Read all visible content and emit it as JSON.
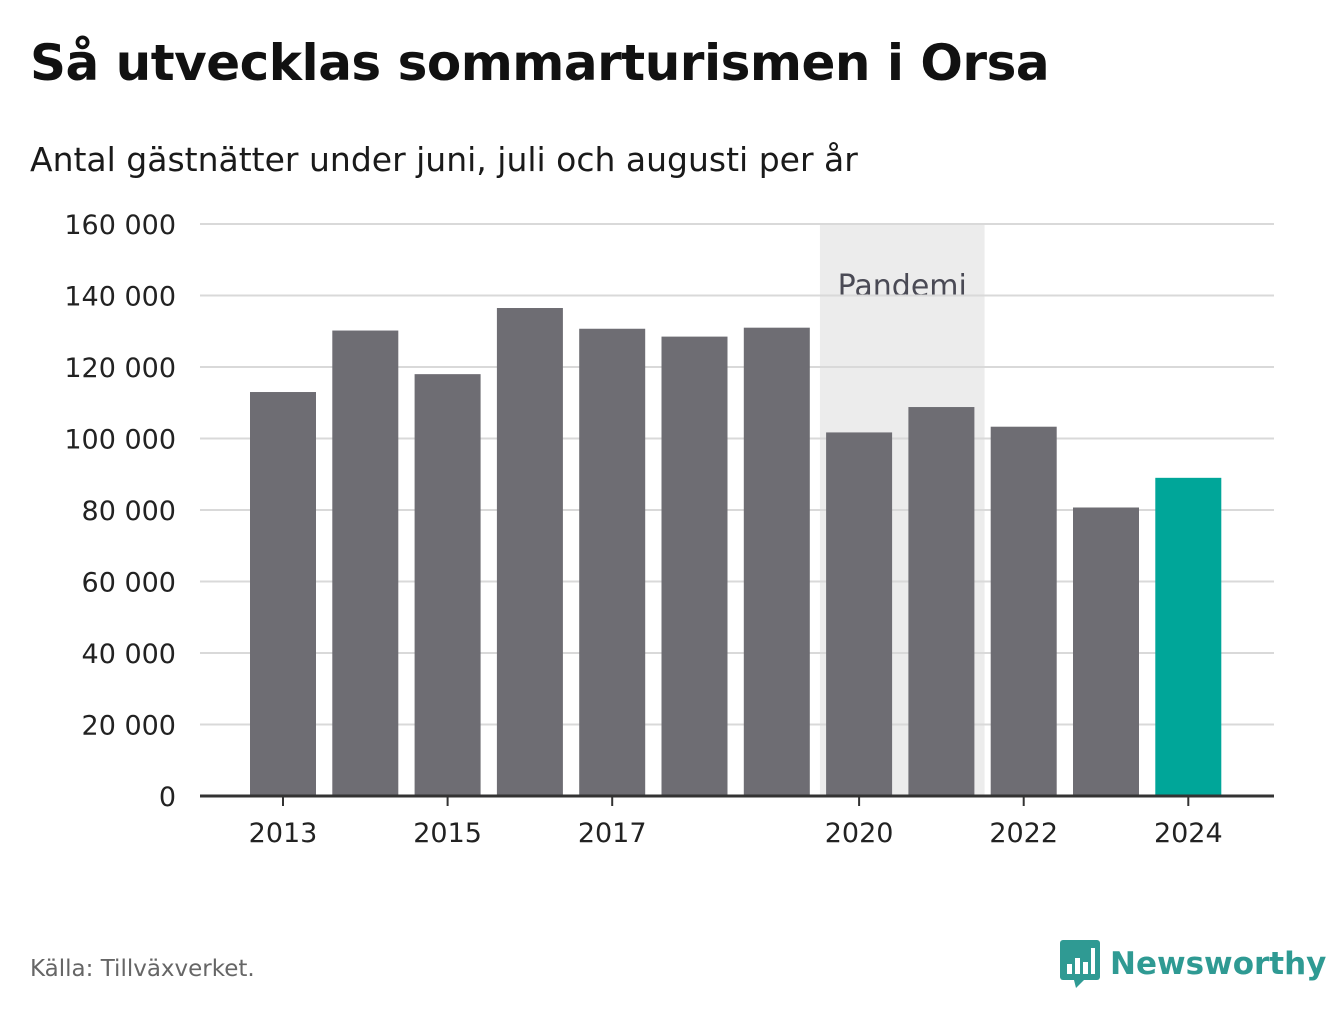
{
  "title": "Så utvecklas sommarturismen i Orsa",
  "subtitle": "Antal gästnätter under juni, juli och augusti per år",
  "source": "Källa: Tillväxverket.",
  "brand": {
    "name": "Newsworthy",
    "icon": "newsworthy-logo-icon"
  },
  "colors": {
    "bar": "#6e6d73",
    "highlight": "#00a699",
    "band": "#ececec",
    "grid": "#d9d9d9",
    "axis": "#333333",
    "brand": "#2f9a93"
  },
  "chart_data": {
    "type": "bar",
    "categories": [
      "2013",
      "2014",
      "2015",
      "2016",
      "2017",
      "2018",
      "2019",
      "2020",
      "2021",
      "2022",
      "2023",
      "2024"
    ],
    "values": [
      113000,
      130200,
      118000,
      136500,
      130700,
      128500,
      131000,
      101700,
      108800,
      103300,
      80700,
      89000
    ],
    "highlight_index": 11,
    "ylim": [
      0,
      160000
    ],
    "yticks": [
      0,
      20000,
      40000,
      60000,
      80000,
      100000,
      120000,
      140000,
      160000
    ],
    "ytick_labels": [
      "0",
      "20 000",
      "40 000",
      "60 000",
      "80 000",
      "100 000",
      "120 000",
      "140 000",
      "160 000"
    ],
    "xtick_labels": [
      "2013",
      "2015",
      "2017",
      "2020",
      "2022",
      "2024"
    ],
    "annotation": {
      "label": "Pandemi",
      "start": "2020",
      "end": "2021"
    },
    "grid": true,
    "legend": false
  }
}
